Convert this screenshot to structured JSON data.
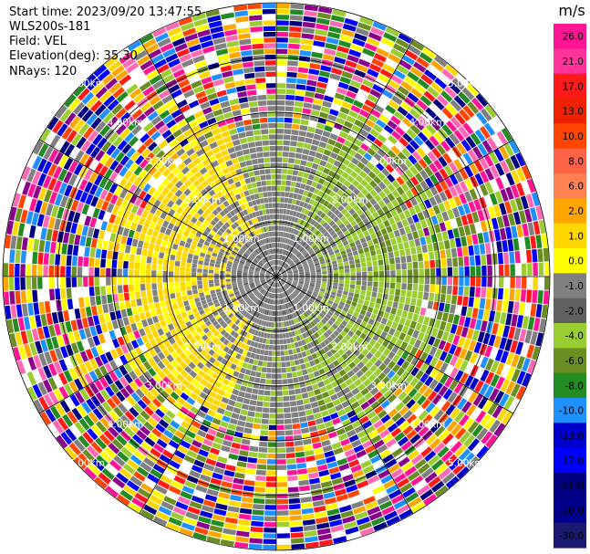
{
  "header": {
    "start_time": "Start time: 2023/09/20 13:47:55",
    "instrument": "WLS200s-181",
    "field": "Field: VEL",
    "elevation": "Elevation(deg): 35.30",
    "nrays": "NRays: 120"
  },
  "chart_data": {
    "type": "heatmap",
    "projection": "polar-ppi",
    "field": "VEL",
    "units": "m/s",
    "nrays": 120,
    "range_max_km": 5.0,
    "range_rings_km": [
      1.0,
      2.0,
      3.0,
      4.0,
      5.0
    ],
    "ring_labels": {
      "1": "1.00km",
      "2": "2.00km",
      "3": "3.00km",
      "4": "4.00km",
      "5": "5.00km"
    },
    "spoke_angles_deg": [
      0,
      30,
      60,
      90,
      120,
      150,
      180,
      210,
      240,
      270,
      300,
      330
    ],
    "colorbar": {
      "unit_label": "m/s",
      "tick_labels": [
        "26.0",
        "21.0",
        "17.0",
        "13.0",
        "10.0",
        "8.0",
        "6.0",
        "2.0",
        "1.0",
        "0.0",
        "-1.0",
        "-2.0",
        "-4.0",
        "-6.0",
        "-8.0",
        "-10.0",
        "-13.0",
        "-17.0",
        "-21.0",
        "-26.0",
        "-30.0"
      ],
      "colors": [
        "#ff1493",
        "#ff3399",
        "#ff1a1a",
        "#ee2200",
        "#ff4500",
        "#ff6347",
        "#ff7f50",
        "#ffa500",
        "#ffd700",
        "#ffff00",
        "#808080",
        "#606060",
        "#9acd32",
        "#6b8e23",
        "#228b22",
        "#1e90ff",
        "#0000cd",
        "#0000ff",
        "#000080",
        "#00008b",
        "#191970"
      ]
    }
  }
}
